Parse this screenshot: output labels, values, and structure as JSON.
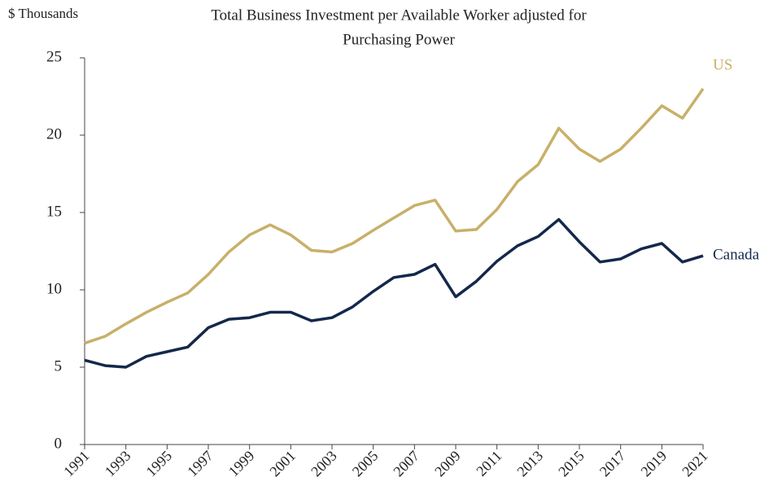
{
  "chart_data": {
    "type": "line",
    "title": [
      "Total Business Investment per Available Worker adjusted for",
      "Purchasing Power"
    ],
    "y_label": "$ Thousands",
    "x": [
      1991,
      1992,
      1993,
      1994,
      1995,
      1996,
      1997,
      1998,
      1999,
      2000,
      2001,
      2002,
      2003,
      2004,
      2005,
      2006,
      2007,
      2008,
      2009,
      2010,
      2011,
      2012,
      2013,
      2014,
      2015,
      2016,
      2017,
      2018,
      2019,
      2020,
      2021
    ],
    "series": [
      {
        "name": "US",
        "color": "#c8b06a",
        "values": [
          6.55,
          7.0,
          7.8,
          8.55,
          9.2,
          9.8,
          11.0,
          12.45,
          13.55,
          14.2,
          13.55,
          12.55,
          12.45,
          13.0,
          13.85,
          14.65,
          15.45,
          15.8,
          13.8,
          13.9,
          15.2,
          17.0,
          18.1,
          20.45,
          19.1,
          18.3,
          19.1,
          20.45,
          21.9,
          21.1,
          23.0
        ]
      },
      {
        "name": "Canada",
        "color": "#14284b",
        "values": [
          5.45,
          5.1,
          5.0,
          5.7,
          6.0,
          6.3,
          7.55,
          8.1,
          8.2,
          8.55,
          8.55,
          8.0,
          8.2,
          8.9,
          9.9,
          10.8,
          11.0,
          11.65,
          9.55,
          10.55,
          11.85,
          12.85,
          13.45,
          14.55,
          13.1,
          11.8,
          12.0,
          12.65,
          13.0,
          11.8,
          12.2
        ]
      }
    ],
    "xlim": [
      1991,
      2021
    ],
    "xticks": [
      1991,
      1993,
      1995,
      1997,
      1999,
      2001,
      2003,
      2005,
      2007,
      2009,
      2011,
      2013,
      2015,
      2017,
      2019,
      2021
    ],
    "ylim": [
      0,
      25
    ],
    "yticks": [
      0,
      5,
      10,
      15,
      20,
      25
    ],
    "grid": false
  }
}
